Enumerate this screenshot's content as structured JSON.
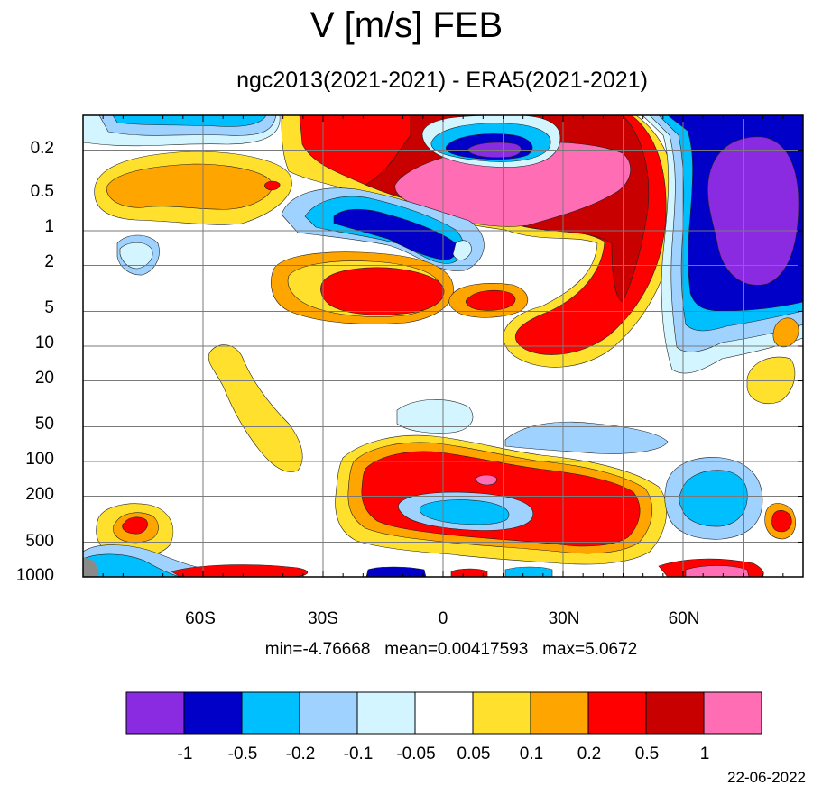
{
  "chart_data": {
    "type": "heatmap",
    "title": "V [m/s] FEB",
    "subtitle": "ngc2013(2021-2021) - ERA5(2021-2021)",
    "x_axis": {
      "ticks": [
        "60S",
        "30S",
        "0",
        "30N",
        "60N"
      ],
      "tick_values": [
        -60,
        -30,
        0,
        30,
        60
      ],
      "range": [
        -90,
        90
      ]
    },
    "y_axis": {
      "ticks": [
        "0.2",
        "0.5",
        "1",
        "2",
        "5",
        "10",
        "20",
        "50",
        "100",
        "200",
        "500",
        "1000"
      ],
      "log_scale": true,
      "inverted": true,
      "range": [
        0.1,
        1000
      ]
    },
    "stats_text": "min=-4.76668   mean=0.00417593   max=5.0672",
    "min": -4.76668,
    "mean": 0.00417593,
    "max": 5.0672,
    "colorbar": {
      "labels": [
        "-1",
        "-0.5",
        "-0.2",
        "-0.1",
        "-0.05",
        "0.05",
        "0.1",
        "0.2",
        "0.5",
        "1"
      ],
      "levels": [
        -1,
        -0.5,
        -0.2,
        -0.1,
        -0.05,
        0.05,
        0.1,
        0.2,
        0.5,
        1
      ],
      "colors": [
        "#8a2be2",
        "#0000c8",
        "#00bfff",
        "#a0d2ff",
        "#d2f5ff",
        "#ffffff",
        "#ffe12d",
        "#ffa500",
        "#ff0000",
        "#c80000",
        "#ff6eb4"
      ]
    },
    "grid": true,
    "date_text": "22-06-2022"
  }
}
